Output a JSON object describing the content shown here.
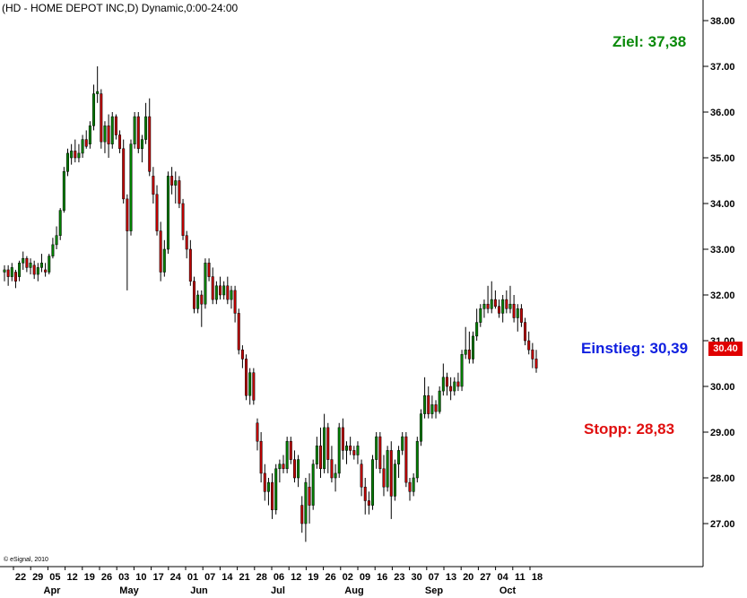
{
  "chart_data": {
    "type": "candlestick",
    "title": "(HD - HOME DEPOT INC,D) Dynamic,0:00-24:00",
    "copyright": "© eSignal, 2010",
    "y_axis": {
      "min": 26.4,
      "max": 38.3,
      "ticks": [
        "27.00",
        "28.00",
        "29.00",
        "30.00",
        "31.00",
        "32.00",
        "33.00",
        "34.00",
        "35.00",
        "36.00",
        "37.00",
        "38.00"
      ],
      "side": "right"
    },
    "x_axis": {
      "day_labels": [
        "22",
        "29",
        "05",
        "12",
        "19",
        "26",
        "03",
        "10",
        "17",
        "24",
        "01",
        "07",
        "14",
        "21",
        "28",
        "06",
        "12",
        "19",
        "26",
        "02",
        "09",
        "16",
        "23",
        "30",
        "07",
        "13",
        "20",
        "27",
        "04",
        "11",
        "18"
      ],
      "month_labels": [
        "Apr",
        "May",
        "Jun",
        "Jul",
        "Aug",
        "Sep",
        "Oct"
      ]
    },
    "last_price": "30.40",
    "colors": {
      "up": "#008000",
      "down": "#c00000",
      "wick": "#000000",
      "last_price_bg": "#e00000"
    },
    "annotations": [
      {
        "label": "Ziel: 37,38",
        "color": "#0a8a0a"
      },
      {
        "label": "Einstieg: 30,39",
        "color": "#1020e0"
      },
      {
        "label": "Stopp: 28,83",
        "color": "#e01010"
      }
    ],
    "candles": [
      [
        32.5,
        32.65,
        32.3,
        32.55
      ],
      [
        32.55,
        32.65,
        32.2,
        32.4
      ],
      [
        32.4,
        32.7,
        32.3,
        32.6
      ],
      [
        32.5,
        32.55,
        32.15,
        32.3
      ],
      [
        32.4,
        32.75,
        32.3,
        32.7
      ],
      [
        32.7,
        32.95,
        32.55,
        32.8
      ],
      [
        32.8,
        32.85,
        32.5,
        32.6
      ],
      [
        32.6,
        32.8,
        32.45,
        32.7
      ],
      [
        32.65,
        32.75,
        32.35,
        32.45
      ],
      [
        32.45,
        32.7,
        32.3,
        32.6
      ],
      [
        32.6,
        32.9,
        32.5,
        32.7
      ],
      [
        32.55,
        32.7,
        32.4,
        32.5
      ],
      [
        32.5,
        32.9,
        32.45,
        32.85
      ],
      [
        32.85,
        33.25,
        32.8,
        33.1
      ],
      [
        33.1,
        33.5,
        33.0,
        33.3
      ],
      [
        33.3,
        33.9,
        33.2,
        33.85
      ],
      [
        33.85,
        34.8,
        33.8,
        34.7
      ],
      [
        34.7,
        35.2,
        34.6,
        35.1
      ],
      [
        35.0,
        35.3,
        34.85,
        35.15
      ],
      [
        35.15,
        35.4,
        34.9,
        35.0
      ],
      [
        35.0,
        35.3,
        34.9,
        35.1
      ],
      [
        35.1,
        35.5,
        35.0,
        35.4
      ],
      [
        35.4,
        35.6,
        35.2,
        35.25
      ],
      [
        35.3,
        35.8,
        35.2,
        35.7
      ],
      [
        35.7,
        36.6,
        35.6,
        36.4
      ],
      [
        36.4,
        37.0,
        36.2,
        36.45
      ],
      [
        36.4,
        36.5,
        35.2,
        35.35
      ],
      [
        35.35,
        35.8,
        35.1,
        35.7
      ],
      [
        35.7,
        35.95,
        35.0,
        35.3
      ],
      [
        35.3,
        36.0,
        35.2,
        35.9
      ],
      [
        35.9,
        35.95,
        35.4,
        35.5
      ],
      [
        35.5,
        35.6,
        35.1,
        35.2
      ],
      [
        35.2,
        35.4,
        34.0,
        34.1
      ],
      [
        34.1,
        34.2,
        32.1,
        33.4
      ],
      [
        33.4,
        35.4,
        33.3,
        35.3
      ],
      [
        35.3,
        36.0,
        35.2,
        35.9
      ],
      [
        35.9,
        36.0,
        35.1,
        35.2
      ],
      [
        35.2,
        35.5,
        34.9,
        35.4
      ],
      [
        35.4,
        36.2,
        35.3,
        35.9
      ],
      [
        35.9,
        36.3,
        34.6,
        34.7
      ],
      [
        34.6,
        34.8,
        34.0,
        34.2
      ],
      [
        34.2,
        34.4,
        33.3,
        33.4
      ],
      [
        33.4,
        33.6,
        32.3,
        32.5
      ],
      [
        32.5,
        33.2,
        32.4,
        33.0
      ],
      [
        33.0,
        34.7,
        32.9,
        34.6
      ],
      [
        34.6,
        34.8,
        34.2,
        34.4
      ],
      [
        34.4,
        34.7,
        34.0,
        34.5
      ],
      [
        34.5,
        34.6,
        33.9,
        34.0
      ],
      [
        34.0,
        34.1,
        33.2,
        33.3
      ],
      [
        33.3,
        33.4,
        32.8,
        33.0
      ],
      [
        33.0,
        33.2,
        32.2,
        32.3
      ],
      [
        32.3,
        32.4,
        31.6,
        31.7
      ],
      [
        31.7,
        32.1,
        31.6,
        32.0
      ],
      [
        32.0,
        32.1,
        31.3,
        31.8
      ],
      [
        31.8,
        32.8,
        31.7,
        32.7
      ],
      [
        32.7,
        32.8,
        32.3,
        32.4
      ],
      [
        32.4,
        32.6,
        31.8,
        31.9
      ],
      [
        31.9,
        32.3,
        31.8,
        32.2
      ],
      [
        32.2,
        32.4,
        31.9,
        32.0
      ],
      [
        32.0,
        32.3,
        31.9,
        32.2
      ],
      [
        32.2,
        32.4,
        31.8,
        31.9
      ],
      [
        31.9,
        32.2,
        31.7,
        32.1
      ],
      [
        32.1,
        32.2,
        31.4,
        31.6
      ],
      [
        31.6,
        31.7,
        30.7,
        30.8
      ],
      [
        30.8,
        30.9,
        30.4,
        30.6
      ],
      [
        30.6,
        30.7,
        29.7,
        29.8
      ],
      [
        29.8,
        30.4,
        29.6,
        30.3
      ],
      [
        30.3,
        30.4,
        29.6,
        29.7
      ],
      [
        29.2,
        29.3,
        28.6,
        28.8
      ],
      [
        28.8,
        29.0,
        27.9,
        28.1
      ],
      [
        28.1,
        28.3,
        27.5,
        27.7
      ],
      [
        27.7,
        28.0,
        27.4,
        27.9
      ],
      [
        27.9,
        28.1,
        27.1,
        27.3
      ],
      [
        27.3,
        28.3,
        27.2,
        28.2
      ],
      [
        28.2,
        28.4,
        27.9,
        28.3
      ],
      [
        28.3,
        28.5,
        28.1,
        28.2
      ],
      [
        28.2,
        28.9,
        28.1,
        28.8
      ],
      [
        28.8,
        28.9,
        28.3,
        28.4
      ],
      [
        28.4,
        28.6,
        27.9,
        28.0
      ],
      [
        28.0,
        28.5,
        27.8,
        28.4
      ],
      [
        27.4,
        27.6,
        26.8,
        27.0
      ],
      [
        27.0,
        28.0,
        26.6,
        27.9
      ],
      [
        27.8,
        28.1,
        27.0,
        27.4
      ],
      [
        27.4,
        28.4,
        27.3,
        28.3
      ],
      [
        28.3,
        28.9,
        28.2,
        28.7
      ],
      [
        28.7,
        29.1,
        28.0,
        28.2
      ],
      [
        28.2,
        29.4,
        28.1,
        29.1
      ],
      [
        29.1,
        29.2,
        28.1,
        28.4
      ],
      [
        28.4,
        28.7,
        27.9,
        28.0
      ],
      [
        28.0,
        28.3,
        27.7,
        28.1
      ],
      [
        28.1,
        29.2,
        28.0,
        29.1
      ],
      [
        29.1,
        29.3,
        28.4,
        28.6
      ],
      [
        28.6,
        28.8,
        28.3,
        28.7
      ],
      [
        28.7,
        28.9,
        28.5,
        28.6
      ],
      [
        28.6,
        28.7,
        28.4,
        28.5
      ],
      [
        28.5,
        28.8,
        28.3,
        28.7
      ],
      [
        28.3,
        28.4,
        27.6,
        27.8
      ],
      [
        27.8,
        28.0,
        27.2,
        27.5
      ],
      [
        27.5,
        27.7,
        27.2,
        27.4
      ],
      [
        27.4,
        28.5,
        27.3,
        28.4
      ],
      [
        28.4,
        29.0,
        28.2,
        28.9
      ],
      [
        28.9,
        29.0,
        28.1,
        28.2
      ],
      [
        28.2,
        28.5,
        27.6,
        27.8
      ],
      [
        27.8,
        28.7,
        27.7,
        28.6
      ],
      [
        28.6,
        28.8,
        27.1,
        27.6
      ],
      [
        27.6,
        28.4,
        27.5,
        28.3
      ],
      [
        28.3,
        28.7,
        28.0,
        28.6
      ],
      [
        28.6,
        29.0,
        28.5,
        28.9
      ],
      [
        28.9,
        29.0,
        27.8,
        27.9
      ],
      [
        27.9,
        28.0,
        27.5,
        27.7
      ],
      [
        27.7,
        28.1,
        27.6,
        28.0
      ],
      [
        28.0,
        28.9,
        27.9,
        28.8
      ],
      [
        28.8,
        29.5,
        28.7,
        29.4
      ],
      [
        29.4,
        30.2,
        29.3,
        29.8
      ],
      [
        29.8,
        30.0,
        29.3,
        29.4
      ],
      [
        29.4,
        29.8,
        29.3,
        29.6
      ],
      [
        29.6,
        29.7,
        29.3,
        29.45
      ],
      [
        29.45,
        30.0,
        29.4,
        29.9
      ],
      [
        29.9,
        30.5,
        29.8,
        30.2
      ],
      [
        30.2,
        30.3,
        29.8,
        30.0
      ],
      [
        30.0,
        30.2,
        29.7,
        29.9
      ],
      [
        29.9,
        30.2,
        29.8,
        30.1
      ],
      [
        30.1,
        30.3,
        29.9,
        30.0
      ],
      [
        30.0,
        30.8,
        29.9,
        30.7
      ],
      [
        30.7,
        31.3,
        30.6,
        30.8
      ],
      [
        30.8,
        31.2,
        30.5,
        30.6
      ],
      [
        30.6,
        31.2,
        30.5,
        31.1
      ],
      [
        31.1,
        31.7,
        31.0,
        31.4
      ],
      [
        31.4,
        31.8,
        31.3,
        31.7
      ],
      [
        31.7,
        31.9,
        31.5,
        31.8
      ],
      [
        31.8,
        32.2,
        31.6,
        31.7
      ],
      [
        31.7,
        32.3,
        31.6,
        31.9
      ],
      [
        31.9,
        32.1,
        31.7,
        31.75
      ],
      [
        31.75,
        31.9,
        31.5,
        31.6
      ],
      [
        31.6,
        32.0,
        31.4,
        31.9
      ],
      [
        31.9,
        32.1,
        31.6,
        31.7
      ],
      [
        31.7,
        32.2,
        31.6,
        31.8
      ],
      [
        31.8,
        32.0,
        31.4,
        31.5
      ],
      [
        31.5,
        31.8,
        31.2,
        31.7
      ],
      [
        31.7,
        31.8,
        31.3,
        31.4
      ],
      [
        31.4,
        31.5,
        30.9,
        31.0
      ],
      [
        31.0,
        31.2,
        30.7,
        30.8
      ],
      [
        30.8,
        30.95,
        30.4,
        30.6
      ],
      [
        30.6,
        30.8,
        30.3,
        30.4
      ]
    ]
  }
}
